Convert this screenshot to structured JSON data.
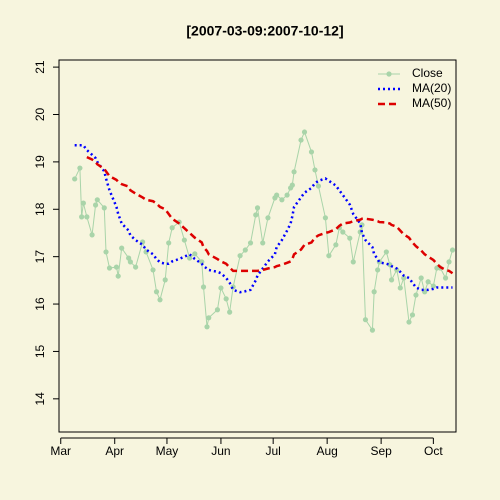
{
  "chart_data": {
    "type": "line",
    "title": "[2007-03-09:2007-10-12]",
    "x": [
      "2007-03-09",
      "2007-03-12",
      "2007-03-13",
      "2007-03-14",
      "2007-03-16",
      "2007-03-19",
      "2007-03-21",
      "2007-03-22",
      "2007-03-26",
      "2007-03-27",
      "2007-03-29",
      "2007-04-02",
      "2007-04-03",
      "2007-04-05",
      "2007-04-09",
      "2007-04-10",
      "2007-04-13",
      "2007-04-17",
      "2007-04-19",
      "2007-04-23",
      "2007-04-25",
      "2007-04-27",
      "2007-04-30",
      "2007-05-02",
      "2007-05-04",
      "2007-05-08",
      "2007-05-11",
      "2007-05-14",
      "2007-05-17",
      "2007-05-21",
      "2007-05-22",
      "2007-05-24",
      "2007-05-25",
      "2007-05-30",
      "2007-06-01",
      "2007-06-04",
      "2007-06-06",
      "2007-06-08",
      "2007-06-12",
      "2007-06-15",
      "2007-06-18",
      "2007-06-21",
      "2007-06-22",
      "2007-06-25",
      "2007-06-28",
      "2007-07-02",
      "2007-07-03",
      "2007-07-06",
      "2007-07-09",
      "2007-07-11",
      "2007-07-12",
      "2007-07-13",
      "2007-07-17",
      "2007-07-19",
      "2007-07-23",
      "2007-07-25",
      "2007-07-27",
      "2007-07-31",
      "2007-08-02",
      "2007-08-06",
      "2007-08-08",
      "2007-08-10",
      "2007-08-14",
      "2007-08-16",
      "2007-08-20",
      "2007-08-21",
      "2007-08-23",
      "2007-08-27",
      "2007-08-28",
      "2007-08-30",
      "2007-08-31",
      "2007-09-04",
      "2007-09-06",
      "2007-09-07",
      "2007-09-10",
      "2007-09-12",
      "2007-09-14",
      "2007-09-17",
      "2007-09-19",
      "2007-09-21",
      "2007-09-24",
      "2007-09-26",
      "2007-09-28",
      "2007-10-01",
      "2007-10-03",
      "2007-10-05",
      "2007-10-08",
      "2007-10-10",
      "2007-10-12"
    ],
    "series": [
      {
        "name": "Close",
        "color": "#a9d4a9",
        "line_style": "solid",
        "markers": true,
        "values": [
          18.64,
          18.87,
          17.84,
          18.13,
          17.84,
          17.46,
          18.09,
          18.2,
          18.03,
          17.1,
          16.76,
          16.78,
          16.59,
          17.18,
          16.97,
          16.89,
          16.78,
          17.31,
          17.1,
          16.72,
          16.26,
          16.09,
          16.51,
          17.29,
          17.61,
          17.73,
          17.35,
          16.97,
          17.06,
          16.89,
          16.36,
          15.52,
          15.71,
          15.88,
          16.34,
          16.11,
          15.83,
          16.36,
          17.02,
          17.14,
          17.29,
          17.88,
          18.03,
          17.29,
          17.82,
          18.24,
          18.3,
          18.2,
          18.3,
          18.45,
          18.51,
          18.79,
          19.46,
          19.63,
          19.21,
          18.83,
          18.49,
          17.82,
          17.02,
          17.25,
          17.61,
          17.52,
          17.39,
          16.89,
          17.52,
          17.67,
          15.67,
          15.45,
          16.26,
          16.72,
          16.89,
          17.1,
          16.83,
          16.51,
          16.72,
          16.34,
          16.55,
          15.62,
          15.77,
          16.19,
          16.55,
          16.26,
          16.47,
          16.38,
          16.76,
          16.76,
          16.55,
          16.89,
          17.14
        ]
      },
      {
        "name": "MA(20)",
        "color": "#0000ff",
        "line_style": "dotted",
        "markers": false,
        "values": [
          19.35,
          19.35,
          19.35,
          19.35,
          19.25,
          19.15,
          19.08,
          19.0,
          18.8,
          18.65,
          18.4,
          18.05,
          17.9,
          17.7,
          17.55,
          17.45,
          17.35,
          17.25,
          17.15,
          17.05,
          16.95,
          16.88,
          16.85,
          16.85,
          16.9,
          16.95,
          17.0,
          17.05,
          16.95,
          16.85,
          16.8,
          16.75,
          16.72,
          16.68,
          16.65,
          16.55,
          16.45,
          16.3,
          16.25,
          16.27,
          16.3,
          16.5,
          16.6,
          16.75,
          16.9,
          17.05,
          17.2,
          17.35,
          17.55,
          17.7,
          17.85,
          18.05,
          18.25,
          18.35,
          18.45,
          18.55,
          18.6,
          18.65,
          18.6,
          18.5,
          18.4,
          18.3,
          18.1,
          17.9,
          17.7,
          17.5,
          17.35,
          17.2,
          17.05,
          16.95,
          16.88,
          16.85,
          16.83,
          16.8,
          16.75,
          16.68,
          16.6,
          16.55,
          16.45,
          16.35,
          16.3,
          16.3,
          16.3,
          16.32,
          16.35,
          16.35,
          16.35,
          16.35,
          16.35
        ]
      },
      {
        "name": "MA(50)",
        "color": "#dd0000",
        "line_style": "dashed",
        "markers": false,
        "values": [
          null,
          null,
          null,
          null,
          19.1,
          19.05,
          19.0,
          18.95,
          18.85,
          18.8,
          18.7,
          18.62,
          18.58,
          18.53,
          18.48,
          18.4,
          18.33,
          18.25,
          18.2,
          18.17,
          18.12,
          18.05,
          18.0,
          17.9,
          17.8,
          17.7,
          17.6,
          17.5,
          17.4,
          17.3,
          17.2,
          17.12,
          17.05,
          16.95,
          16.9,
          16.85,
          16.77,
          16.7,
          16.7,
          16.7,
          16.7,
          16.7,
          16.7,
          16.72,
          16.75,
          16.78,
          16.8,
          16.83,
          16.87,
          16.9,
          16.95,
          17.05,
          17.15,
          17.25,
          17.3,
          17.4,
          17.45,
          17.5,
          17.52,
          17.58,
          17.65,
          17.7,
          17.72,
          17.75,
          17.78,
          17.8,
          17.8,
          17.78,
          17.77,
          17.75,
          17.73,
          17.72,
          17.7,
          17.67,
          17.63,
          17.55,
          17.47,
          17.4,
          17.3,
          17.22,
          17.13,
          17.05,
          17.0,
          16.93,
          16.85,
          16.78,
          16.72,
          16.7,
          16.65
        ]
      }
    ],
    "xlim": [
      "2007-02-28",
      "2007-10-14"
    ],
    "xticks": [
      {
        "value": "2007-03-01",
        "label": "Mar"
      },
      {
        "value": "2007-04-01",
        "label": "Apr"
      },
      {
        "value": "2007-05-01",
        "label": "May"
      },
      {
        "value": "2007-06-01",
        "label": "Jun"
      },
      {
        "value": "2007-07-01",
        "label": "Jul"
      },
      {
        "value": "2007-08-01",
        "label": "Aug"
      },
      {
        "value": "2007-09-01",
        "label": "Sep"
      },
      {
        "value": "2007-10-01",
        "label": "Oct"
      }
    ],
    "ylim": [
      13.3,
      21.15
    ],
    "yticks": [
      14,
      15,
      16,
      17,
      18,
      19,
      20,
      21
    ],
    "legend": "topright",
    "grid": false
  }
}
